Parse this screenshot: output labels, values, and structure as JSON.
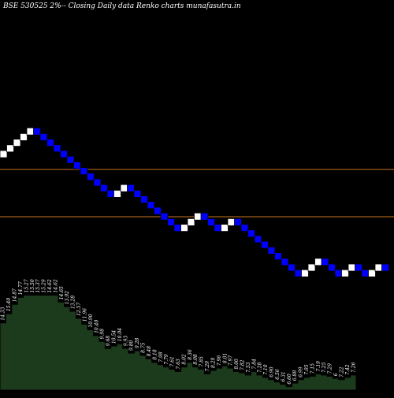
{
  "chart_data": {
    "type": "renko",
    "title": "BSE 530525 2%-- Closing Daily data Renko charts munafasutra.in",
    "colors": {
      "background": "#000000",
      "up_brick": "#ffffff",
      "down_brick": "#0000ff",
      "brick_border": "#000000",
      "reference_line": "#c8741c",
      "volume_fill": "#1c3a1c",
      "volume_top_edge": "#000000",
      "label": "#ffffff"
    },
    "brick_directions": [
      "up",
      "up",
      "up",
      "up",
      "up",
      "down",
      "down",
      "down",
      "down",
      "down",
      "down",
      "down",
      "down",
      "down",
      "down",
      "down",
      "down",
      "up",
      "up",
      "down",
      "down",
      "down",
      "down",
      "down",
      "down",
      "down",
      "down",
      "up",
      "up",
      "up",
      "down",
      "down",
      "down",
      "up",
      "up",
      "down",
      "down",
      "down",
      "down",
      "down",
      "down",
      "down",
      "down",
      "down",
      "down",
      "up",
      "up",
      "up",
      "down",
      "down",
      "down",
      "up",
      "up",
      "down",
      "down",
      "up",
      "up",
      "down"
    ],
    "reference_lines": [
      "upper",
      "lower"
    ],
    "volume_labels": [
      "14.33",
      "15.40",
      "14.87",
      "14.77",
      "15.27",
      "15.50",
      "15.37",
      "15.29",
      "14.62",
      "14.62",
      "14.65",
      "13.92",
      "13.28",
      "12.57",
      "11.96",
      "10.90",
      "10.40",
      "9.98",
      "9.68",
      "10.54",
      "10.04",
      "9.93",
      "9.80",
      "9.28",
      "8.75",
      "8.48",
      "8.18",
      "7.98",
      "7.79",
      "7.61",
      "7.63",
      "8.02",
      "8.36",
      "8.08",
      "7.85",
      "7.29",
      "8.29",
      "7.96",
      "8.01",
      "7.97",
      "8.00",
      "7.82",
      "7.53",
      "7.84",
      "7.28",
      "7.10",
      "6.90",
      "6.56",
      "6.31",
      "6.60",
      "6.88",
      "6.99",
      "7.05",
      "7.15",
      "7.19",
      "7.25",
      "7.29",
      "6",
      "7.22",
      "7.42",
      "7.26"
    ],
    "volume_levels": [
      0.58,
      0.66,
      0.74,
      0.8,
      0.82,
      0.82,
      0.82,
      0.82,
      0.82,
      0.82,
      0.76,
      0.72,
      0.68,
      0.62,
      0.57,
      0.52,
      0.47,
      0.42,
      0.36,
      0.38,
      0.4,
      0.36,
      0.32,
      0.34,
      0.3,
      0.27,
      0.24,
      0.22,
      0.2,
      0.18,
      0.16,
      0.2,
      0.24,
      0.2,
      0.18,
      0.14,
      0.17,
      0.19,
      0.21,
      0.19,
      0.16,
      0.15,
      0.13,
      0.16,
      0.13,
      0.11,
      0.09,
      0.07,
      0.05,
      0.03,
      0.06,
      0.09,
      0.11,
      0.12,
      0.14,
      0.13,
      0.12,
      0.1,
      0.09,
      0.11,
      0.13
    ]
  }
}
